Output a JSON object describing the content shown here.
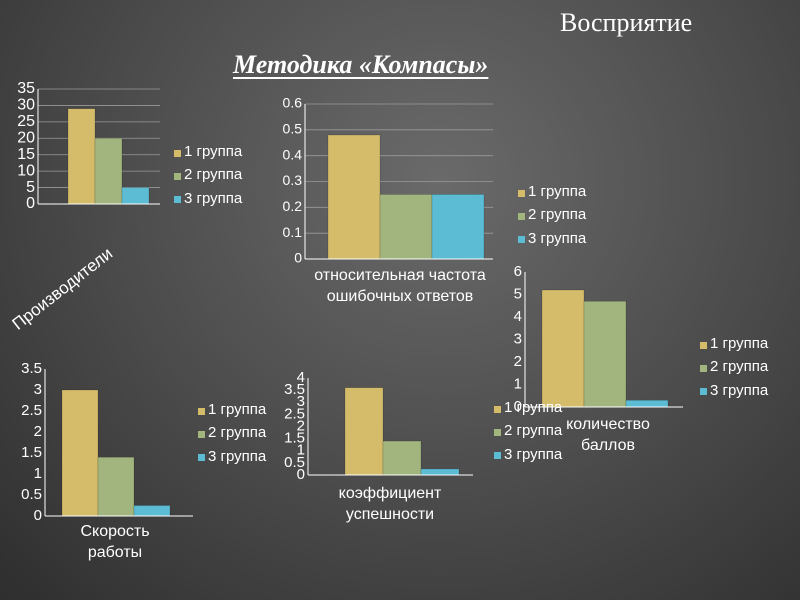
{
  "slide": {
    "title": "Восприятие",
    "subtitle": "Методика «Компасы»"
  },
  "colors": {
    "group1": "#d4bc6a",
    "group2": "#a2b57e",
    "group3": "#5cbcd4",
    "axis": "#ffffff"
  },
  "chart_data": [
    {
      "id": "chart1",
      "type": "bar",
      "categories": [
        "Производители"
      ],
      "series": [
        {
          "name": "1 группа",
          "values": [
            29
          ]
        },
        {
          "name": "2 группа",
          "values": [
            20
          ]
        },
        {
          "name": "3 группа",
          "values": [
            5
          ]
        }
      ],
      "ylim": [
        0,
        35
      ],
      "yticks": [
        0,
        5,
        10,
        15,
        20,
        25,
        30,
        35
      ],
      "grid": true,
      "legend": "right"
    },
    {
      "id": "chart2",
      "type": "bar",
      "categories": [
        "относительная частота ошибочных ответов"
      ],
      "series": [
        {
          "name": "1 группа",
          "values": [
            0.48
          ]
        },
        {
          "name": "2 группа",
          "values": [
            0.25
          ]
        },
        {
          "name": "3 группа",
          "values": [
            0.25
          ]
        }
      ],
      "ylim": [
        0,
        0.6
      ],
      "yticks": [
        0,
        0.1,
        0.2,
        0.3,
        0.4,
        0.5,
        0.6
      ],
      "grid": true,
      "legend": "right"
    },
    {
      "id": "chart3",
      "type": "bar",
      "categories": [
        "количество баллов"
      ],
      "series": [
        {
          "name": "1 группа",
          "values": [
            5.2
          ]
        },
        {
          "name": "2 группа",
          "values": [
            4.7
          ]
        },
        {
          "name": "3 группа",
          "values": [
            0.3
          ]
        }
      ],
      "ylim": [
        0,
        6
      ],
      "yticks": [
        0,
        1,
        2,
        3,
        4,
        5,
        6
      ],
      "grid": false,
      "legend": "right"
    },
    {
      "id": "chart4",
      "type": "bar",
      "categories": [
        "Скорость работы"
      ],
      "series": [
        {
          "name": "1 группа",
          "values": [
            3.0
          ]
        },
        {
          "name": "2 группа",
          "values": [
            1.4
          ]
        },
        {
          "name": "3 группа",
          "values": [
            0.25
          ]
        }
      ],
      "ylim": [
        0,
        3.5
      ],
      "yticks": [
        0,
        0.5,
        1,
        1.5,
        2,
        2.5,
        3,
        3.5
      ],
      "grid": false,
      "legend": "right"
    },
    {
      "id": "chart5",
      "type": "bar",
      "categories": [
        "коэффициент успешности"
      ],
      "series": [
        {
          "name": "1 группа",
          "values": [
            3.6
          ]
        },
        {
          "name": "2 группа",
          "values": [
            1.4
          ]
        },
        {
          "name": "3 группа",
          "values": [
            0.25
          ]
        }
      ],
      "ylim": [
        0,
        4
      ],
      "yticks": [
        0,
        0.5,
        1,
        1.5,
        2,
        2.5,
        3,
        3.5,
        4
      ],
      "grid": false,
      "legend": "right"
    }
  ]
}
